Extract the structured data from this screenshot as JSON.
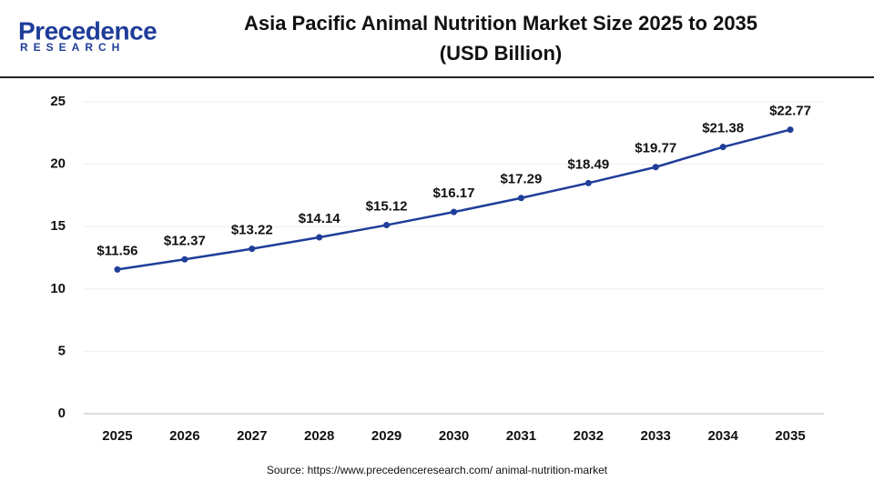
{
  "logo": {
    "name": "Precedence",
    "tagline": "RESEARCH"
  },
  "chart_data": {
    "type": "line",
    "title": "Asia Pacific Animal Nutrition Market Size 2025 to 2035",
    "subtitle": "(USD Billion)",
    "categories": [
      "2025",
      "2026",
      "2027",
      "2028",
      "2029",
      "2030",
      "2031",
      "2032",
      "2033",
      "2034",
      "2035"
    ],
    "values": [
      11.56,
      12.37,
      13.22,
      14.14,
      15.12,
      16.17,
      17.29,
      18.49,
      19.77,
      21.38,
      22.77
    ],
    "value_labels": [
      "$11.56",
      "$12.37",
      "$13.22",
      "$14.14",
      "$15.12",
      "$16.17",
      "$17.29",
      "$18.49",
      "$19.77",
      "$21.38",
      "$22.77"
    ],
    "color": "#1f3d99",
    "ylim": [
      0,
      25
    ],
    "yticks": [
      0,
      5,
      10,
      15,
      20,
      25
    ],
    "grid": true,
    "source": "Source: https://www.precedenceresearch.com/ animal-nutrition-market"
  }
}
